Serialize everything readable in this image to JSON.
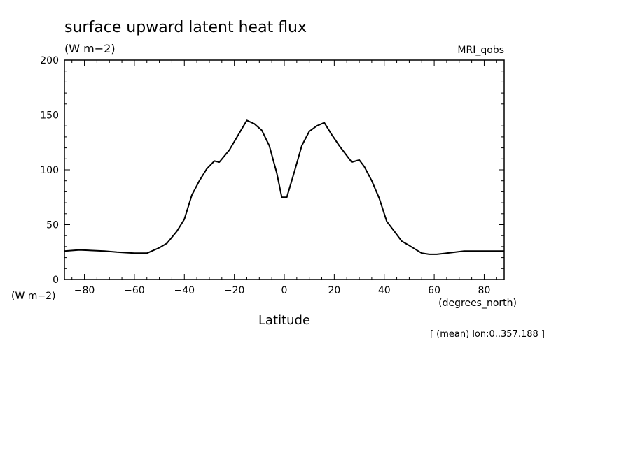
{
  "chart_data": {
    "type": "line",
    "title": "surface upward latent heat flux",
    "units": "(W m−2)",
    "model": "MRI_qobs",
    "xlabel": "Latitude",
    "xunits": "(degrees_north)",
    "yunits": "(W m−2)",
    "footnote": "[ (mean) lon:0..357.188 ]",
    "xlim": [
      -88,
      88
    ],
    "ylim": [
      0,
      200
    ],
    "xticks": [
      -80,
      -60,
      -40,
      -20,
      0,
      20,
      40,
      60,
      80
    ],
    "xtick_labels": [
      "−80",
      "−60",
      "−40",
      "−20",
      "0",
      "20",
      "40",
      "60",
      "80"
    ],
    "yticks": [
      0,
      50,
      100,
      150,
      200
    ],
    "ytick_labels": [
      "0",
      "50",
      "100",
      "150",
      "200"
    ],
    "grid": false,
    "series": [
      {
        "x": [
          -88,
          -82,
          -72,
          -67,
          -60,
          -55,
          -50,
          -47,
          -43,
          -40,
          -37,
          -34,
          -31,
          -28,
          -26,
          -22,
          -15,
          -12,
          -9,
          -6,
          -3,
          -1,
          1,
          4,
          7,
          10,
          13,
          16,
          19,
          22,
          25,
          27,
          30,
          32,
          35,
          38,
          41,
          44,
          47,
          50,
          55,
          58,
          61,
          65,
          72,
          76,
          80,
          88
        ],
        "y": [
          26,
          27,
          26,
          25,
          24,
          24,
          29,
          33,
          44,
          55,
          77,
          90,
          101,
          108,
          107,
          118,
          145,
          142,
          136,
          122,
          97,
          75,
          75,
          98,
          122,
          135,
          140,
          143,
          132,
          122,
          113,
          107,
          109,
          103,
          90,
          74,
          53,
          44,
          35,
          31,
          24,
          23,
          23,
          24,
          26,
          26,
          26,
          26
        ]
      }
    ]
  }
}
